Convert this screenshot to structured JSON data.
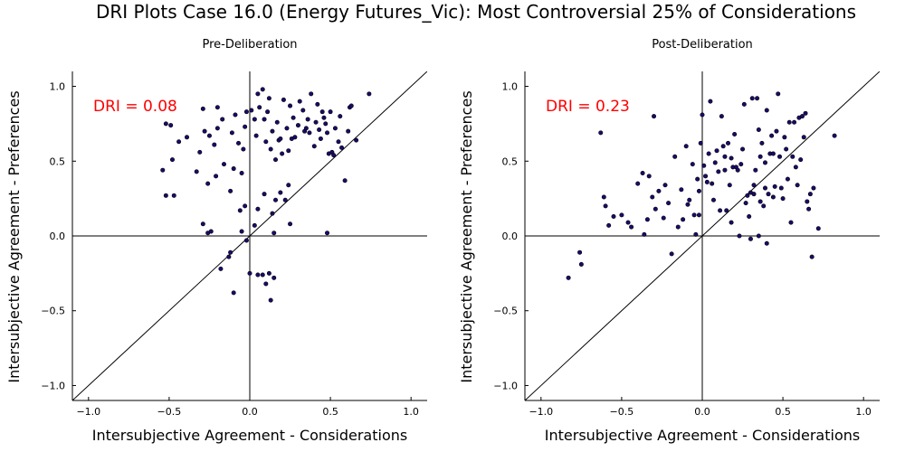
{
  "figure": {
    "title": "DRI Plots Case 16.0 (Energy Futures_Vic): Most Controversial 25% of Considerations"
  },
  "colors": {
    "point_fill": "#1a0a6b",
    "dri_text": "#ff0000",
    "lines": "#000000"
  },
  "chart_data": [
    {
      "type": "scatter",
      "title": "Pre-Deliberation",
      "xlabel": "Intersubjective Agreement - Considerations",
      "ylabel": "Intersubjective Agreement - Preferences",
      "xlim": [
        -1.1,
        1.1
      ],
      "ylim": [
        -1.1,
        1.1
      ],
      "xticks": [
        -1.0,
        -0.5,
        0.0,
        0.5,
        1.0
      ],
      "yticks": [
        -1.0,
        -0.5,
        0.0,
        0.5,
        1.0
      ],
      "xtick_labels": [
        "−1.0",
        "−0.5",
        "0.0",
        "0.5",
        "1.0"
      ],
      "ytick_labels": [
        "−1.0",
        "−0.5",
        "0.0",
        "0.5",
        "1.0"
      ],
      "grid": false,
      "reference_lines": [
        "x=0",
        "y=0",
        "y=x"
      ],
      "annotation": "DRI = 0.08",
      "points": [
        [
          -0.54,
          0.44
        ],
        [
          -0.52,
          0.75
        ],
        [
          -0.52,
          0.27
        ],
        [
          -0.49,
          0.74
        ],
        [
          -0.48,
          0.51
        ],
        [
          -0.47,
          0.27
        ],
        [
          -0.44,
          0.63
        ],
        [
          -0.39,
          0.66
        ],
        [
          -0.33,
          0.43
        ],
        [
          -0.31,
          0.56
        ],
        [
          -0.29,
          0.85
        ],
        [
          -0.28,
          0.7
        ],
        [
          -0.26,
          0.35
        ],
        [
          -0.25,
          0.67
        ],
        [
          -0.22,
          0.61
        ],
        [
          -0.21,
          0.4
        ],
        [
          -0.2,
          0.72
        ],
        [
          -0.17,
          0.78
        ],
        [
          -0.16,
          0.48
        ],
        [
          -0.12,
          0.3
        ],
        [
          -0.11,
          0.69
        ],
        [
          -0.1,
          0.45
        ],
        [
          -0.09,
          0.81
        ],
        [
          -0.07,
          0.62
        ],
        [
          -0.05,
          0.42
        ],
        [
          -0.04,
          0.58
        ],
        [
          -0.03,
          0.73
        ],
        [
          -0.02,
          0.83
        ],
        [
          0.01,
          0.84
        ],
        [
          0.03,
          0.78
        ],
        [
          0.04,
          0.67
        ],
        [
          0.05,
          0.95
        ],
        [
          0.06,
          0.86
        ],
        [
          0.08,
          0.98
        ],
        [
          0.09,
          0.78
        ],
        [
          0.1,
          0.63
        ],
        [
          0.11,
          0.83
        ],
        [
          0.12,
          0.92
        ],
        [
          0.13,
          0.58
        ],
        [
          0.14,
          0.7
        ],
        [
          0.16,
          0.51
        ],
        [
          0.17,
          0.76
        ],
        [
          0.18,
          0.64
        ],
        [
          0.19,
          0.65
        ],
        [
          0.2,
          0.55
        ],
        [
          0.21,
          0.91
        ],
        [
          0.23,
          0.72
        ],
        [
          0.24,
          0.57
        ],
        [
          0.25,
          0.87
        ],
        [
          0.26,
          0.65
        ],
        [
          0.27,
          0.79
        ],
        [
          0.28,
          0.66
        ],
        [
          0.3,
          0.74
        ],
        [
          0.31,
          0.9
        ],
        [
          0.33,
          0.84
        ],
        [
          0.34,
          0.7
        ],
        [
          0.35,
          0.72
        ],
        [
          0.36,
          0.78
        ],
        [
          0.37,
          0.69
        ],
        [
          0.38,
          0.95
        ],
        [
          0.4,
          0.6
        ],
        [
          0.41,
          0.76
        ],
        [
          0.42,
          0.88
        ],
        [
          0.43,
          0.71
        ],
        [
          0.44,
          0.65
        ],
        [
          0.45,
          0.83
        ],
        [
          0.46,
          0.79
        ],
        [
          0.47,
          0.75
        ],
        [
          0.48,
          0.69
        ],
        [
          0.49,
          0.55
        ],
        [
          0.5,
          0.83
        ],
        [
          0.51,
          0.56
        ],
        [
          0.52,
          0.54
        ],
        [
          0.53,
          0.72
        ],
        [
          0.55,
          0.63
        ],
        [
          0.56,
          0.8
        ],
        [
          0.57,
          0.59
        ],
        [
          0.59,
          0.37
        ],
        [
          0.61,
          0.7
        ],
        [
          0.62,
          0.86
        ],
        [
          0.63,
          0.87
        ],
        [
          0.66,
          0.64
        ],
        [
          0.74,
          0.95
        ],
        [
          0.48,
          0.02
        ],
        [
          -0.29,
          0.08
        ],
        [
          -0.26,
          0.02
        ],
        [
          -0.24,
          0.03
        ],
        [
          -0.18,
          -0.22
        ],
        [
          -0.13,
          -0.14
        ],
        [
          -0.12,
          -0.11
        ],
        [
          -0.1,
          -0.38
        ],
        [
          -0.05,
          0.03
        ],
        [
          -0.02,
          -0.03
        ],
        [
          0.0,
          -0.25
        ],
        [
          0.03,
          0.07
        ],
        [
          0.05,
          -0.26
        ],
        [
          0.08,
          -0.26
        ],
        [
          0.09,
          0.28
        ],
        [
          0.1,
          -0.32
        ],
        [
          0.12,
          -0.25
        ],
        [
          0.13,
          -0.43
        ],
        [
          0.14,
          0.15
        ],
        [
          0.15,
          -0.28
        ],
        [
          0.16,
          0.24
        ],
        [
          0.19,
          0.29
        ],
        [
          0.22,
          0.24
        ],
        [
          0.24,
          0.34
        ],
        [
          0.25,
          0.08
        ],
        [
          -0.06,
          0.17
        ],
        [
          -0.03,
          0.2
        ],
        [
          0.05,
          0.18
        ],
        [
          0.15,
          0.02
        ],
        [
          -0.2,
          0.86
        ]
      ]
    },
    {
      "type": "scatter",
      "title": "Post-Deliberation",
      "xlabel": "Intersubjective Agreement - Considerations",
      "ylabel": "Intersubjective Agreement - Preferences",
      "xlim": [
        -1.1,
        1.1
      ],
      "ylim": [
        -1.1,
        1.1
      ],
      "xticks": [
        -1.0,
        -0.5,
        0.0,
        0.5,
        1.0
      ],
      "yticks": [
        -1.0,
        -0.5,
        0.0,
        0.5,
        1.0
      ],
      "xtick_labels": [
        "−1.0",
        "−0.5",
        "0.0",
        "0.5",
        "1.0"
      ],
      "ytick_labels": [
        "−1.0",
        "−0.5",
        "0.0",
        "0.5",
        "1.0"
      ],
      "grid": false,
      "reference_lines": [
        "x=0",
        "y=0",
        "y=x"
      ],
      "annotation": "DRI = 0.23",
      "points": [
        [
          -0.83,
          -0.28
        ],
        [
          -0.76,
          -0.11
        ],
        [
          -0.75,
          -0.19
        ],
        [
          -0.63,
          0.69
        ],
        [
          -0.61,
          0.26
        ],
        [
          -0.6,
          0.2
        ],
        [
          -0.58,
          0.07
        ],
        [
          -0.55,
          0.13
        ],
        [
          -0.5,
          0.14
        ],
        [
          -0.46,
          0.09
        ],
        [
          -0.44,
          0.06
        ],
        [
          -0.4,
          0.35
        ],
        [
          -0.37,
          0.42
        ],
        [
          -0.36,
          0.01
        ],
        [
          -0.34,
          0.11
        ],
        [
          -0.33,
          0.4
        ],
        [
          -0.31,
          0.26
        ],
        [
          -0.3,
          0.8
        ],
        [
          -0.29,
          0.18
        ],
        [
          -0.27,
          0.3
        ],
        [
          -0.24,
          0.12
        ],
        [
          -0.23,
          0.34
        ],
        [
          -0.21,
          0.22
        ],
        [
          -0.19,
          -0.12
        ],
        [
          -0.17,
          0.53
        ],
        [
          -0.15,
          0.06
        ],
        [
          -0.13,
          0.31
        ],
        [
          -0.12,
          0.11
        ],
        [
          -0.1,
          0.6
        ],
        [
          -0.09,
          0.21
        ],
        [
          -0.08,
          0.24
        ],
        [
          -0.06,
          0.48
        ],
        [
          -0.05,
          0.14
        ],
        [
          -0.04,
          0.01
        ],
        [
          -0.03,
          0.38
        ],
        [
          -0.02,
          0.3
        ],
        [
          -0.01,
          0.62
        ],
        [
          0.0,
          0.81
        ],
        [
          0.01,
          0.47
        ],
        [
          0.02,
          0.4
        ],
        [
          0.03,
          0.36
        ],
        [
          0.04,
          0.55
        ],
        [
          0.05,
          0.9
        ],
        [
          0.07,
          0.24
        ],
        [
          0.08,
          0.49
        ],
        [
          0.09,
          0.57
        ],
        [
          0.1,
          0.43
        ],
        [
          0.11,
          0.17
        ],
        [
          0.12,
          0.8
        ],
        [
          0.13,
          0.6
        ],
        [
          0.14,
          0.44
        ],
        [
          0.15,
          0.17
        ],
        [
          0.16,
          0.62
        ],
        [
          0.17,
          0.34
        ],
        [
          0.18,
          0.52
        ],
        [
          0.19,
          0.46
        ],
        [
          0.2,
          0.68
        ],
        [
          0.21,
          0.46
        ],
        [
          0.22,
          0.44
        ],
        [
          0.24,
          0.48
        ],
        [
          0.25,
          0.58
        ],
        [
          0.26,
          0.88
        ],
        [
          0.27,
          0.22
        ],
        [
          0.28,
          0.27
        ],
        [
          0.29,
          0.13
        ],
        [
          0.3,
          0.29
        ],
        [
          0.31,
          0.92
        ],
        [
          0.32,
          0.34
        ],
        [
          0.33,
          0.44
        ],
        [
          0.34,
          0.92
        ],
        [
          0.35,
          0.71
        ],
        [
          0.36,
          0.53
        ],
        [
          0.37,
          0.62
        ],
        [
          0.38,
          0.2
        ],
        [
          0.39,
          0.49
        ],
        [
          0.4,
          0.84
        ],
        [
          0.41,
          0.28
        ],
        [
          0.42,
          0.55
        ],
        [
          0.43,
          0.67
        ],
        [
          0.44,
          0.26
        ],
        [
          0.45,
          0.33
        ],
        [
          0.46,
          0.7
        ],
        [
          0.47,
          0.95
        ],
        [
          0.48,
          0.53
        ],
        [
          0.49,
          0.32
        ],
        [
          0.5,
          0.25
        ],
        [
          0.51,
          0.66
        ],
        [
          0.52,
          0.58
        ],
        [
          0.53,
          0.38
        ],
        [
          0.54,
          0.76
        ],
        [
          0.55,
          0.09
        ],
        [
          0.56,
          0.53
        ],
        [
          0.57,
          0.76
        ],
        [
          0.58,
          0.46
        ],
        [
          0.59,
          0.34
        ],
        [
          0.6,
          0.79
        ],
        [
          0.61,
          0.51
        ],
        [
          0.62,
          0.8
        ],
        [
          0.63,
          0.66
        ],
        [
          0.64,
          0.82
        ],
        [
          0.65,
          0.23
        ],
        [
          0.66,
          0.18
        ],
        [
          0.67,
          0.28
        ],
        [
          0.68,
          -0.14
        ],
        [
          0.69,
          0.32
        ],
        [
          0.72,
          0.05
        ],
        [
          0.82,
          0.67
        ],
        [
          0.36,
          0.23
        ],
        [
          0.4,
          -0.05
        ],
        [
          0.35,
          0.0
        ],
        [
          0.32,
          0.28
        ],
        [
          0.23,
          0.0
        ],
        [
          0.3,
          -0.02
        ],
        [
          0.39,
          0.32
        ],
        [
          0.44,
          0.55
        ],
        [
          0.14,
          0.53
        ],
        [
          -0.02,
          0.14
        ],
        [
          0.06,
          0.35
        ],
        [
          0.18,
          0.09
        ]
      ]
    }
  ]
}
